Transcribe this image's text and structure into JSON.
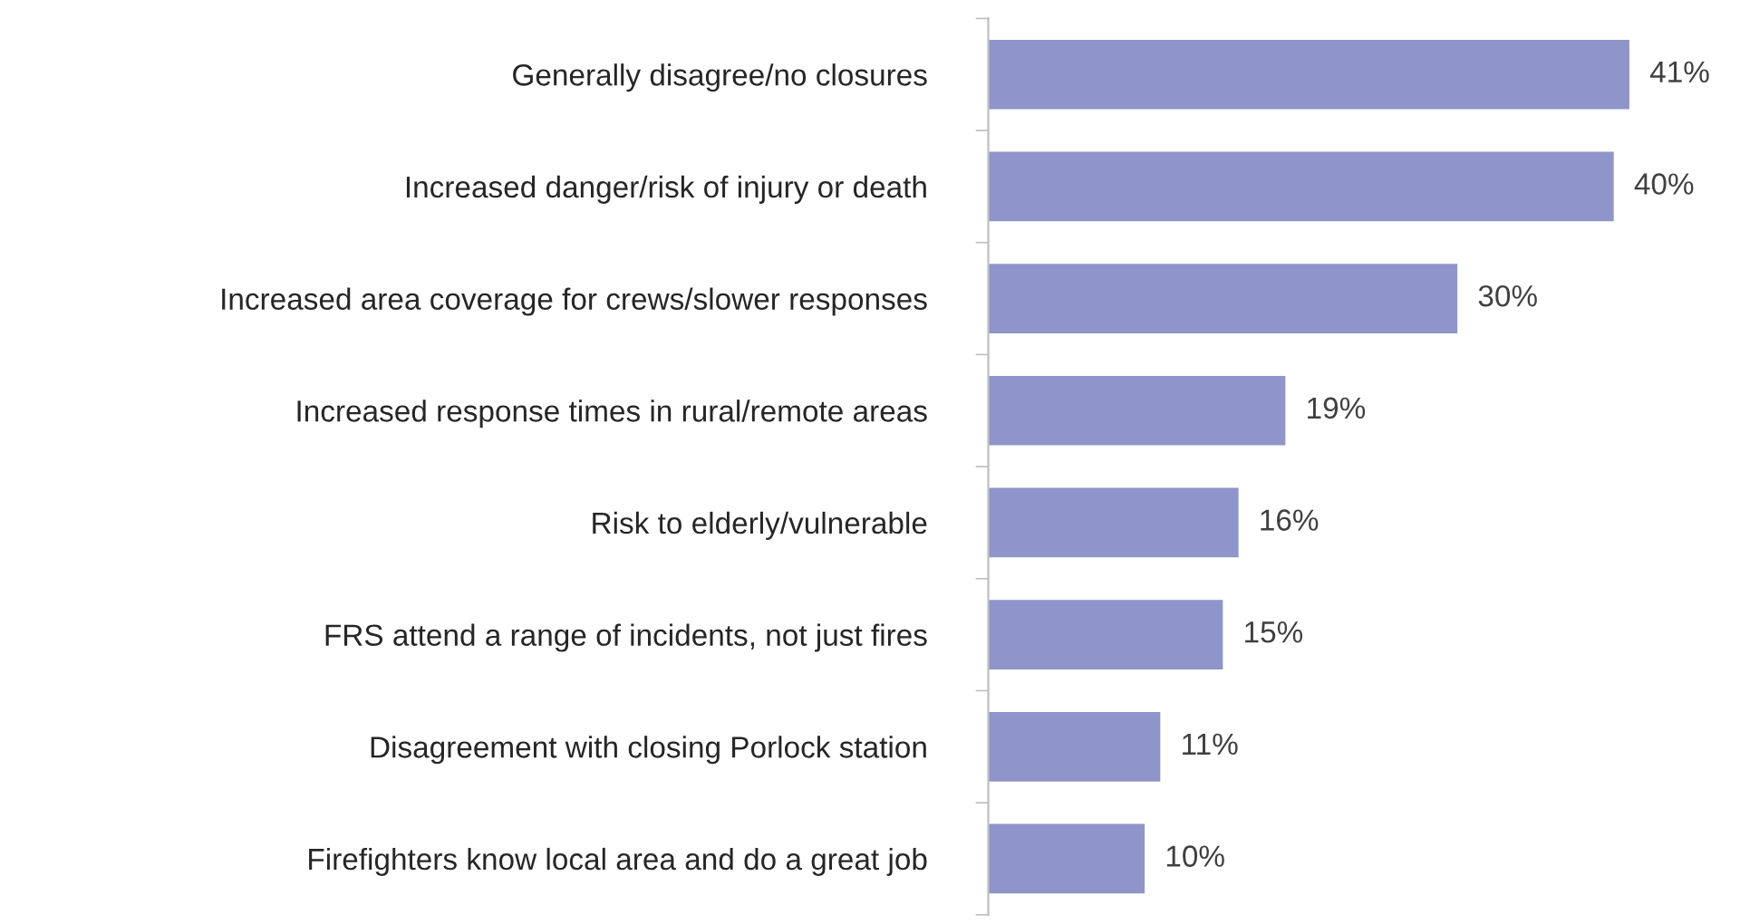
{
  "chart_data": {
    "type": "bar",
    "orientation": "horizontal",
    "categories": [
      "Generally disagree/no closures",
      "Increased danger/risk of injury or death",
      "Increased area coverage for crews/slower responses",
      "Increased response times in rural/remote areas",
      "Risk to elderly/vulnerable",
      "FRS attend a range of incidents, not just fires",
      "Disagreement with closing Porlock station",
      "Firefighters know local area and do a great job"
    ],
    "values": [
      41,
      40,
      30,
      19,
      16,
      15,
      11,
      10
    ],
    "value_labels": [
      "41%",
      "40%",
      "30%",
      "19%",
      "16%",
      "15%",
      "11%",
      "10%"
    ],
    "color": "#8f94c9"
  }
}
